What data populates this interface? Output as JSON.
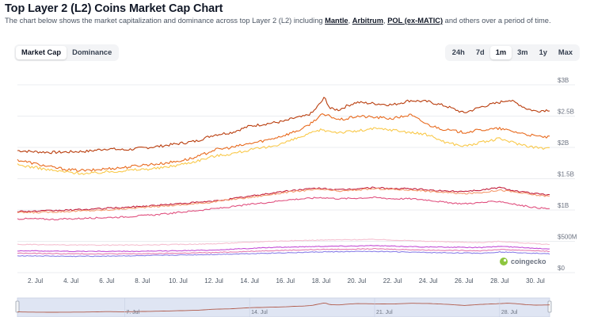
{
  "header": {
    "title": "Top Layer 2 (L2) Coins Market Cap Chart",
    "subtitle_pre": "The chart below shows the market capitalization and dominance across top Layer 2 (L2) including ",
    "links": [
      "Mantle",
      "Arbitrum",
      "POL (ex-MATIC)"
    ],
    "sep1": ", ",
    "sep2": ", ",
    "subtitle_post": " and others over a period of time."
  },
  "view_tabs": [
    {
      "label": "Market Cap",
      "active": true
    },
    {
      "label": "Dominance",
      "active": false
    }
  ],
  "range_tabs": [
    {
      "label": "24h",
      "active": false
    },
    {
      "label": "7d",
      "active": false
    },
    {
      "label": "1m",
      "active": true
    },
    {
      "label": "3m",
      "active": false
    },
    {
      "label": "1y",
      "active": false
    },
    {
      "label": "Max",
      "active": false
    }
  ],
  "watermark": "coingecko",
  "chart_data": {
    "type": "line",
    "x_unit": "day of July",
    "xlim": [
      1,
      30.8
    ],
    "ylim": [
      0,
      3
    ],
    "y_unit": "billion USD",
    "grid": true,
    "y_ticks": [
      {
        "v": 0,
        "label": "$0"
      },
      {
        "v": 0.5,
        "label": "$500M"
      },
      {
        "v": 1,
        "label": "$1B"
      },
      {
        "v": 1.5,
        "label": "$1.5B"
      },
      {
        "v": 2,
        "label": "$2B"
      },
      {
        "v": 2.5,
        "label": "$2.5B"
      },
      {
        "v": 3,
        "label": "$3B"
      }
    ],
    "x_ticks": [
      {
        "v": 2,
        "label": "2. Jul"
      },
      {
        "v": 4,
        "label": "4. Jul"
      },
      {
        "v": 6,
        "label": "6. Jul"
      },
      {
        "v": 8,
        "label": "8. Jul"
      },
      {
        "v": 10,
        "label": "10. Jul"
      },
      {
        "v": 12,
        "label": "12. Jul"
      },
      {
        "v": 14,
        "label": "14. Jul"
      },
      {
        "v": 16,
        "label": "16. Jul"
      },
      {
        "v": 18,
        "label": "18. Jul"
      },
      {
        "v": 20,
        "label": "20. Jul"
      },
      {
        "v": 22,
        "label": "22. Jul"
      },
      {
        "v": 24,
        "label": "24. Jul"
      },
      {
        "v": 26,
        "label": "26. Jul"
      },
      {
        "v": 28,
        "label": "28. Jul"
      },
      {
        "v": 30,
        "label": "30. Jul"
      }
    ],
    "series": [
      {
        "color": "#b93d0d",
        "x": [
          1,
          2,
          3,
          4,
          5,
          6,
          7,
          8,
          9,
          10,
          11,
          12,
          13,
          14,
          15,
          16,
          16.5,
          17,
          17.5,
          18,
          18.2,
          18.5,
          19,
          19.5,
          20,
          21,
          22,
          23,
          24,
          25,
          26,
          27,
          28,
          28.5,
          29,
          29.5,
          30,
          30.8
        ],
        "values": [
          1.95,
          1.93,
          1.92,
          1.93,
          1.94,
          1.98,
          1.96,
          1.99,
          2.02,
          2.06,
          2.1,
          2.2,
          2.24,
          2.34,
          2.38,
          2.42,
          2.47,
          2.49,
          2.55,
          2.72,
          2.8,
          2.62,
          2.6,
          2.67,
          2.72,
          2.7,
          2.68,
          2.75,
          2.73,
          2.66,
          2.55,
          2.65,
          2.72,
          2.76,
          2.7,
          2.62,
          2.58,
          2.6
        ]
      },
      {
        "color": "#e86a1e",
        "x": [
          1,
          2,
          3,
          4,
          5,
          6,
          7,
          8,
          9,
          10,
          11,
          12,
          13,
          14,
          15,
          16,
          17,
          17.5,
          18,
          18.5,
          19,
          19.5,
          20,
          21,
          22,
          23,
          24,
          25,
          26,
          27,
          28,
          29,
          30,
          30.8
        ],
        "values": [
          1.8,
          1.74,
          1.68,
          1.64,
          1.63,
          1.66,
          1.68,
          1.72,
          1.74,
          1.78,
          1.84,
          1.96,
          2.0,
          2.06,
          2.12,
          2.2,
          2.3,
          2.4,
          2.52,
          2.5,
          2.44,
          2.46,
          2.5,
          2.48,
          2.46,
          2.52,
          2.36,
          2.28,
          2.24,
          2.28,
          2.3,
          2.24,
          2.18,
          2.16
        ]
      },
      {
        "color": "#f9c94a",
        "x": [
          1,
          2,
          3,
          4,
          5,
          6,
          7,
          8,
          9,
          10,
          11,
          12,
          13,
          14,
          15,
          16,
          17,
          18,
          19,
          20,
          21,
          22,
          23,
          24,
          25,
          26,
          27,
          28,
          29,
          30,
          30.8
        ],
        "values": [
          1.72,
          1.68,
          1.63,
          1.6,
          1.58,
          1.61,
          1.63,
          1.65,
          1.67,
          1.72,
          1.78,
          1.86,
          1.9,
          1.96,
          2.0,
          2.08,
          2.18,
          2.28,
          2.24,
          2.26,
          2.3,
          2.28,
          2.24,
          2.2,
          2.08,
          2.02,
          2.08,
          2.14,
          2.06,
          2.0,
          1.98
        ]
      },
      {
        "color": "#c21e3c",
        "x": [
          1,
          2,
          3,
          4,
          5,
          6,
          7,
          8,
          9,
          10,
          11,
          12,
          13,
          14,
          15,
          16,
          17,
          18,
          19,
          20,
          21,
          22,
          23,
          24,
          25,
          26,
          27,
          28,
          29,
          30,
          30.8
        ],
        "values": [
          0.98,
          0.98,
          0.99,
          1.0,
          1.01,
          1.03,
          1.04,
          1.06,
          1.08,
          1.1,
          1.12,
          1.14,
          1.18,
          1.22,
          1.26,
          1.3,
          1.33,
          1.35,
          1.32,
          1.34,
          1.36,
          1.34,
          1.34,
          1.32,
          1.3,
          1.3,
          1.32,
          1.36,
          1.3,
          1.26,
          1.24
        ]
      },
      {
        "color": "#f59a6e",
        "x": [
          1,
          2,
          3,
          4,
          5,
          6,
          7,
          8,
          9,
          10,
          11,
          12,
          13,
          14,
          15,
          16,
          17,
          18,
          19,
          20,
          21,
          22,
          23,
          24,
          25,
          26,
          27,
          28,
          29,
          30,
          30.8
        ],
        "values": [
          0.96,
          0.96,
          0.97,
          0.98,
          0.99,
          1.0,
          1.02,
          1.04,
          1.06,
          1.08,
          1.1,
          1.13,
          1.17,
          1.2,
          1.24,
          1.28,
          1.31,
          1.33,
          1.3,
          1.32,
          1.34,
          1.33,
          1.32,
          1.3,
          1.28,
          1.26,
          1.28,
          1.32,
          1.28,
          1.24,
          1.22
        ]
      },
      {
        "color": "#e0507f",
        "x": [
          1,
          2,
          3,
          4,
          5,
          6,
          7,
          8,
          9,
          10,
          11,
          12,
          13,
          14,
          15,
          16,
          17,
          18,
          19,
          20,
          21,
          22,
          23,
          24,
          25,
          26,
          27,
          28,
          29,
          30,
          30.8
        ],
        "values": [
          0.86,
          0.86,
          0.85,
          0.86,
          0.87,
          0.88,
          0.89,
          0.91,
          0.93,
          0.96,
          0.99,
          1.02,
          1.05,
          1.09,
          1.12,
          1.16,
          1.18,
          1.2,
          1.18,
          1.19,
          1.2,
          1.18,
          1.18,
          1.16,
          1.12,
          1.1,
          1.12,
          1.14,
          1.08,
          1.04,
          1.02
        ]
      },
      {
        "color": "#f5c0d0",
        "x": [
          1,
          4,
          8,
          12,
          15,
          18,
          21,
          24,
          27,
          28,
          30,
          30.8
        ],
        "values": [
          0.45,
          0.44,
          0.44,
          0.46,
          0.5,
          0.52,
          0.53,
          0.5,
          0.48,
          0.5,
          0.46,
          0.45
        ]
      },
      {
        "color": "#c44fd6",
        "x": [
          1,
          4,
          8,
          12,
          15,
          18,
          21,
          24,
          27,
          28,
          30,
          30.8
        ],
        "values": [
          0.35,
          0.34,
          0.34,
          0.36,
          0.4,
          0.42,
          0.43,
          0.41,
          0.4,
          0.42,
          0.39,
          0.38
        ]
      },
      {
        "color": "#e37bb0",
        "x": [
          1,
          4,
          8,
          12,
          15,
          18,
          21,
          24,
          27,
          28,
          30,
          30.8
        ],
        "values": [
          0.31,
          0.3,
          0.3,
          0.32,
          0.35,
          0.37,
          0.38,
          0.36,
          0.35,
          0.37,
          0.35,
          0.34
        ]
      },
      {
        "color": "#8b80e8",
        "x": [
          1,
          4,
          8,
          12,
          15,
          18,
          21,
          24,
          27,
          28,
          30,
          30.8
        ],
        "values": [
          0.27,
          0.26,
          0.27,
          0.29,
          0.31,
          0.33,
          0.34,
          0.32,
          0.31,
          0.33,
          0.31,
          0.3
        ]
      }
    ],
    "navigator": {
      "x_ticks": [
        {
          "v": 7,
          "label": "7. Jul"
        },
        {
          "v": 14,
          "label": "14. Jul"
        },
        {
          "v": 21,
          "label": "21. Jul"
        },
        {
          "v": 28,
          "label": "28. Jul"
        }
      ]
    }
  }
}
